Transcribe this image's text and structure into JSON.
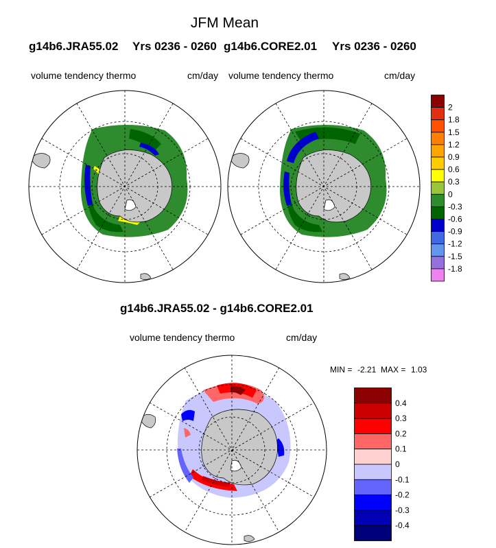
{
  "title": "JFM Mean",
  "panels": [
    {
      "case": "g14b6.JRA55.02",
      "years": "Yrs 0236 - 0260",
      "variable": "volume tendency thermo",
      "units": "cm/day"
    },
    {
      "case": "g14b6.CORE2.01",
      "years": "Yrs 0236 - 0260",
      "variable": "volume tendency thermo",
      "units": "cm/day"
    }
  ],
  "diff": {
    "title": "g14b6.JRA55.02 - g14b6.CORE2.01",
    "variable": "volume tendency thermo",
    "units": "cm/day",
    "min_label": "MIN =",
    "min": "-2.21",
    "max_label": "MAX =",
    "max": "1.03"
  },
  "colorbar_top": {
    "labels": [
      "2",
      "1.8",
      "1.5",
      "1.2",
      "0.9",
      "0.6",
      "0.3",
      "0",
      "-0.3",
      "-0.6",
      "-0.9",
      "-1.2",
      "-1.5",
      "-1.8"
    ],
    "colors": [
      "#8b0000",
      "#e03010",
      "#ff5000",
      "#ff8000",
      "#ffa500",
      "#ffcc00",
      "#ffff00",
      "#9ac43a",
      "#2e8b2e",
      "#006400",
      "#0000cd",
      "#4169e1",
      "#6495ed",
      "#9370db",
      "#ee82ee"
    ]
  },
  "colorbar_diff": {
    "labels": [
      "0.4",
      "0.3",
      "0.2",
      "0.1",
      "0",
      "-0.1",
      "-0.2",
      "-0.3",
      "-0.4"
    ],
    "colors": [
      "#8b0000",
      "#cc0000",
      "#ff0000",
      "#ff6666",
      "#ffd0d0",
      "#c8c8ff",
      "#6464ff",
      "#0000ff",
      "#0000b4",
      "#00007a"
    ]
  }
}
